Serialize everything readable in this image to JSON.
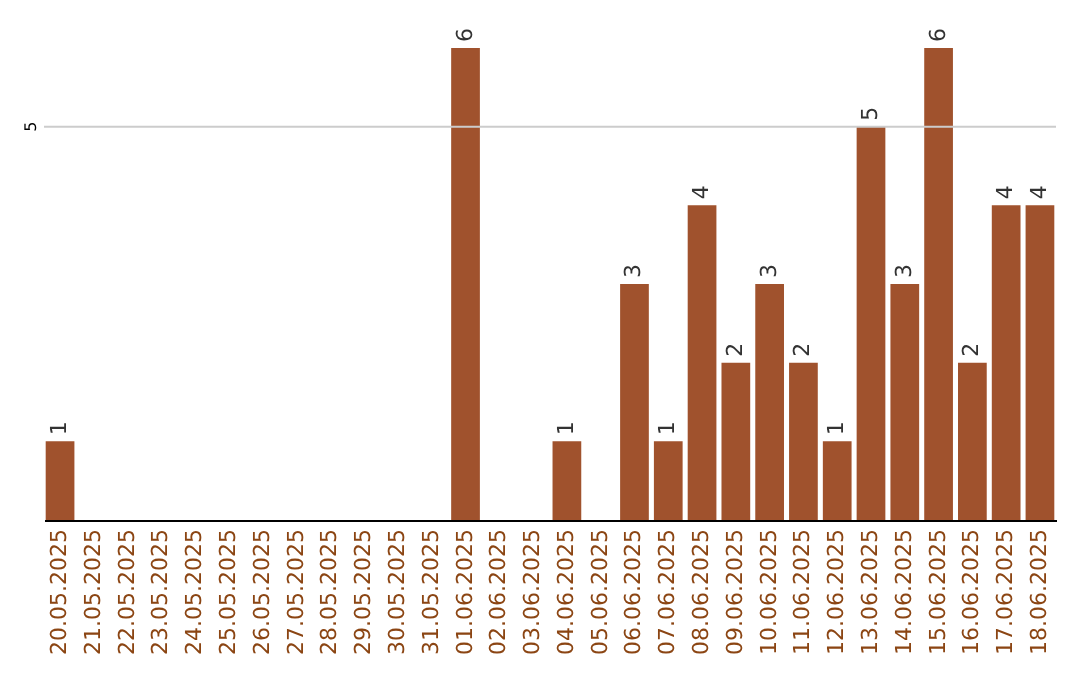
{
  "chart_data": {
    "type": "bar",
    "categories": [
      "20.05.2025",
      "21.05.2025",
      "22.05.2025",
      "23.05.2025",
      "24.05.2025",
      "25.05.2025",
      "26.05.2025",
      "27.05.2025",
      "28.05.2025",
      "29.05.2025",
      "30.05.2025",
      "31.05.2025",
      "01.06.2025",
      "02.06.2025",
      "03.06.2025",
      "04.06.2025",
      "05.06.2025",
      "06.06.2025",
      "07.06.2025",
      "08.06.2025",
      "09.06.2025",
      "10.06.2025",
      "11.06.2025",
      "12.06.2025",
      "13.06.2025",
      "14.06.2025",
      "15.06.2025",
      "16.06.2025",
      "17.06.2025",
      "18.06.2025"
    ],
    "values": [
      1,
      0,
      0,
      0,
      0,
      0,
      0,
      0,
      0,
      0,
      0,
      0,
      6,
      0,
      0,
      1,
      0,
      3,
      1,
      4,
      2,
      3,
      2,
      1,
      5,
      3,
      6,
      2,
      4,
      4
    ],
    "value_labels": [
      "1",
      null,
      null,
      null,
      null,
      null,
      null,
      null,
      null,
      null,
      null,
      null,
      "6",
      null,
      null,
      "1",
      null,
      "3",
      "1",
      "4",
      "2",
      "3",
      "2",
      "1",
      "5",
      "3",
      "6",
      "2",
      "4",
      "4"
    ],
    "color": "#a0522d",
    "ref_lines": [
      {
        "axis": "y",
        "value": 5,
        "label": "5",
        "color": "#cccccc"
      }
    ]
  }
}
